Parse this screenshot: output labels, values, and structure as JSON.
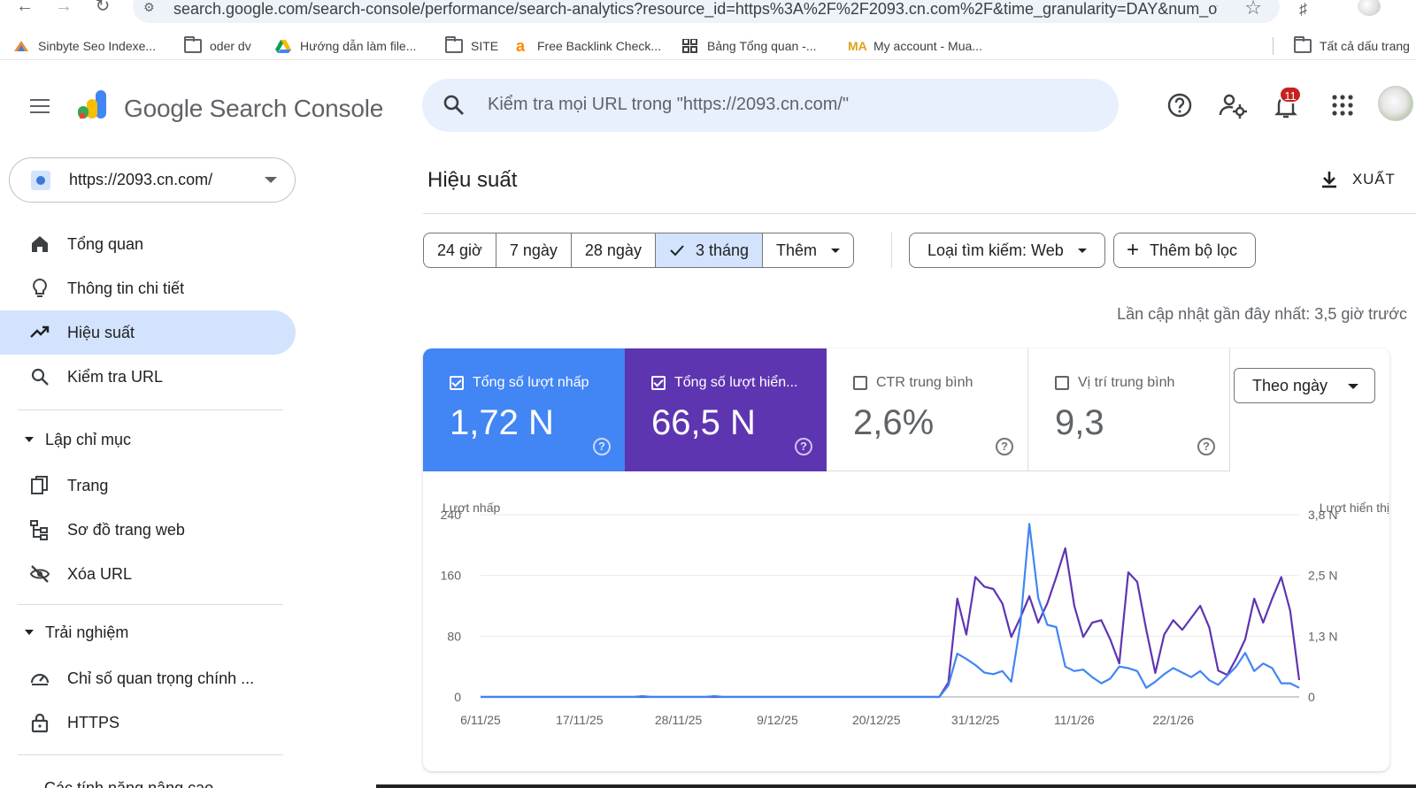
{
  "browser": {
    "url": "search.google.com/search-console/performance/search-analytics?resource_id=https%3A%2F%2F2093.cn.com%2F&time_granularity=DAY&num_of_m...",
    "bookmarks": [
      {
        "label": "Sinbyte Seo Indexe...",
        "icon": "sinbyte-icon"
      },
      {
        "label": "oder dv",
        "icon": "folder-icon"
      },
      {
        "label": "Hướng dẫn làm file...",
        "icon": "google-drive-icon"
      },
      {
        "label": "SITE",
        "icon": "folder-icon"
      },
      {
        "label": "Free Backlink Check...",
        "icon": "ahrefs-icon"
      },
      {
        "label": "Bảng Tổng quan -...",
        "icon": "grid-icon"
      },
      {
        "label": "My account - Mua...",
        "icon": "mua-icon"
      },
      {
        "label": "Tất cả dấu trang",
        "icon": "folder-icon"
      }
    ]
  },
  "app": {
    "title": "Google Search Console",
    "search_placeholder": "Kiểm tra mọi URL trong \"https://2093.cn.com/\"",
    "notification_count": "11"
  },
  "sidebar": {
    "property": "https://2093.cn.com/",
    "items": [
      {
        "label": "Tổng quan",
        "icon": "home-icon"
      },
      {
        "label": "Thông tin chi tiết",
        "icon": "lightbulb-icon"
      },
      {
        "label": "Hiệu suất",
        "icon": "trending-up-icon",
        "active": true
      },
      {
        "label": "Kiểm tra URL",
        "icon": "search-icon"
      }
    ],
    "section_index": "Lập chỉ mục",
    "index_items": [
      {
        "label": "Trang",
        "icon": "pages-icon"
      },
      {
        "label": "Sơ đồ trang web",
        "icon": "sitemap-icon"
      },
      {
        "label": "Xóa URL",
        "icon": "eye-off-icon"
      }
    ],
    "section_experience": "Trải nghiệm",
    "experience_items": [
      {
        "label": "Chỉ số quan trọng chính ...",
        "icon": "speed-icon"
      },
      {
        "label": "HTTPS",
        "icon": "lock-icon"
      }
    ],
    "cut_off_label": "Các tính năng nâng cao"
  },
  "main": {
    "title": "Hiệu suất",
    "export_label": "XUẤT",
    "ranges": [
      "24 giờ",
      "7 ngày",
      "28 ngày",
      "3 tháng",
      "Thêm"
    ],
    "selected_range": "3 tháng",
    "search_type": "Loại tìm kiếm: Web",
    "add_filter": "Thêm bộ lọc",
    "last_updated": "Lần cập nhật gần đây nhất: 3,5 giờ trước",
    "granularity": "Theo ngày",
    "metrics": [
      {
        "label": "Tổng số lượt nhấp",
        "value": "1,72 N",
        "checked": true,
        "color": "#4285f4"
      },
      {
        "label": "Tổng số lượt hiển...",
        "value": "66,5 N",
        "checked": true,
        "color": "#5e35b1"
      },
      {
        "label": "CTR trung bình",
        "value": "2,6%",
        "checked": false
      },
      {
        "label": "Vị trí trung bình",
        "value": "9,3",
        "checked": false
      }
    ]
  },
  "chart_data": {
    "type": "line",
    "ylabel": "Lượt nhấp",
    "ylabel_right": "Lượt hiển thị",
    "y_ticks": [
      "240",
      "160",
      "80",
      "0"
    ],
    "y_right_ticks": [
      "3,8 N",
      "2,5 N",
      "1,3 N",
      "0"
    ],
    "ylim": [
      0,
      240
    ],
    "y_right_lim": [
      0,
      3800
    ],
    "x_ticks": [
      "6/11/25",
      "17/11/25",
      "28/11/25",
      "9/12/25",
      "20/12/25",
      "31/12/25",
      "11/1/26",
      "22/1/26"
    ],
    "series": [
      {
        "name": "Lượt nhấp",
        "color": "#4285f4",
        "axis": "left",
        "values": [
          0,
          0,
          0,
          0,
          0,
          0,
          0,
          0,
          0,
          0,
          0,
          0,
          0,
          0,
          0,
          0,
          0,
          0,
          1,
          0,
          0,
          0,
          0,
          0,
          0,
          0,
          1,
          0,
          0,
          0,
          0,
          0,
          0,
          0,
          0,
          0,
          0,
          0,
          0,
          0,
          0,
          0,
          0,
          0,
          0,
          0,
          0,
          0,
          0,
          0,
          0,
          0,
          15,
          57,
          50,
          42,
          32,
          30,
          34,
          20,
          95,
          228,
          130,
          95,
          92,
          40,
          34,
          36,
          26,
          18,
          24,
          40,
          38,
          34,
          12,
          20,
          30,
          38,
          32,
          26,
          34,
          22,
          16,
          28,
          40,
          58,
          34,
          44,
          38,
          18,
          18,
          12
        ]
      },
      {
        "name": "Lượt hiển thị",
        "color": "#5e35b1",
        "axis": "right",
        "values": [
          0,
          0,
          0,
          0,
          0,
          0,
          0,
          0,
          0,
          0,
          0,
          0,
          0,
          0,
          0,
          0,
          0,
          0,
          0,
          0,
          0,
          0,
          0,
          0,
          0,
          0,
          0,
          0,
          0,
          0,
          0,
          0,
          0,
          0,
          0,
          0,
          0,
          0,
          0,
          0,
          0,
          0,
          0,
          0,
          0,
          0,
          0,
          0,
          0,
          0,
          0,
          0,
          300,
          2050,
          1300,
          2500,
          2300,
          2250,
          1950,
          1250,
          1650,
          2100,
          1550,
          1950,
          2500,
          3100,
          1900,
          1250,
          1550,
          1600,
          1200,
          700,
          2600,
          2400,
          1400,
          500,
          1300,
          1600,
          1400,
          1650,
          1900,
          1450,
          550,
          460,
          800,
          1200,
          2050,
          1550,
          2050,
          2500,
          1800,
          350
        ]
      }
    ]
  }
}
